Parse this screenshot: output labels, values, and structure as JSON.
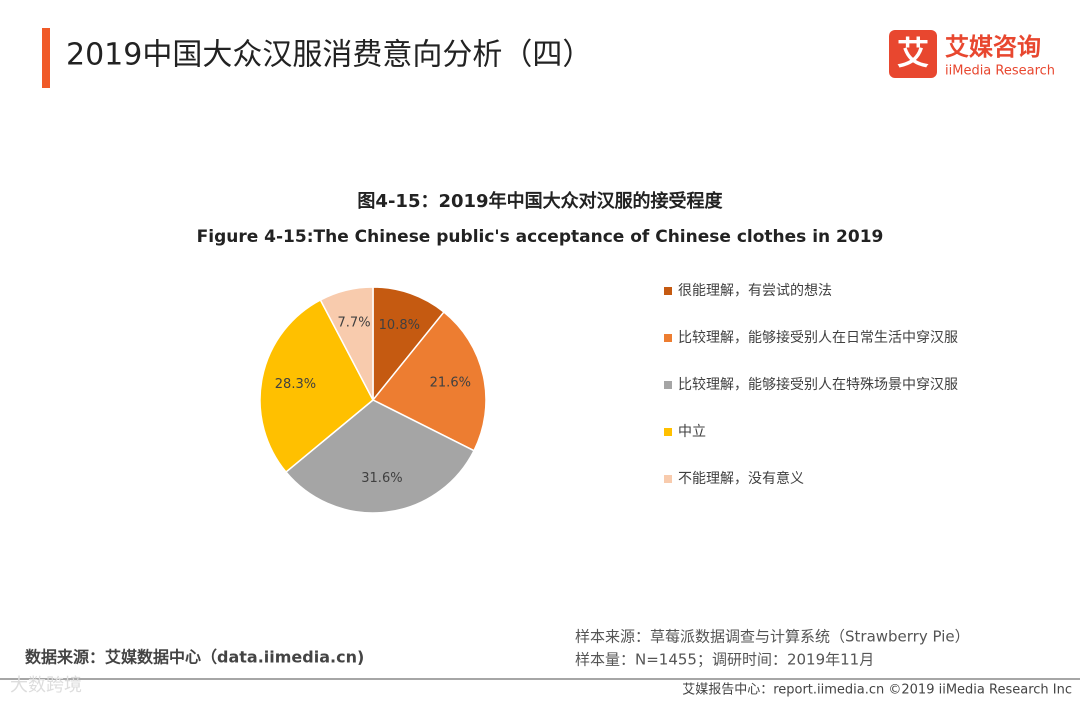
{
  "header": {
    "title": "2019中国大众汉服消费意向分析（四）",
    "logo_mark": "艾",
    "logo_name": "艾媒咨询",
    "logo_sub": "iiMedia Research"
  },
  "chart_data": {
    "type": "pie",
    "title": "图4-15：2019年中国大众对汉服的接受程度",
    "subtitle": "Figure 4-15:The Chinese public's acceptance of Chinese clothes in 2019",
    "categories": [
      "很能理解，有尝试的想法",
      "比较理解，能够接受别人在日常生活中穿汉服",
      "比较理解，能够接受别人在特殊场景中穿汉服",
      "中立",
      "不能理解，没有意义"
    ],
    "values": [
      10.8,
      21.6,
      31.6,
      28.3,
      7.7
    ],
    "value_labels": [
      "10.8%",
      "21.6%",
      "31.6%",
      "28.3%",
      "7.7%"
    ],
    "colors": [
      "#c55a11",
      "#ed7d31",
      "#a5a5a5",
      "#ffc000",
      "#f8cbad"
    ],
    "legend": "right"
  },
  "footer": {
    "data_source": "数据来源：艾媒数据中心（data.iimedia.cn)",
    "sample_source": "样本来源：草莓派数据调查与计算系统（Strawberry Pie）",
    "sample_size": "样本量：N=1455；调研时间：2019年11月",
    "report_center": "艾媒报告中心：report.iimedia.cn  ©2019  iiMedia Research  Inc",
    "watermark": "大数跨境"
  }
}
